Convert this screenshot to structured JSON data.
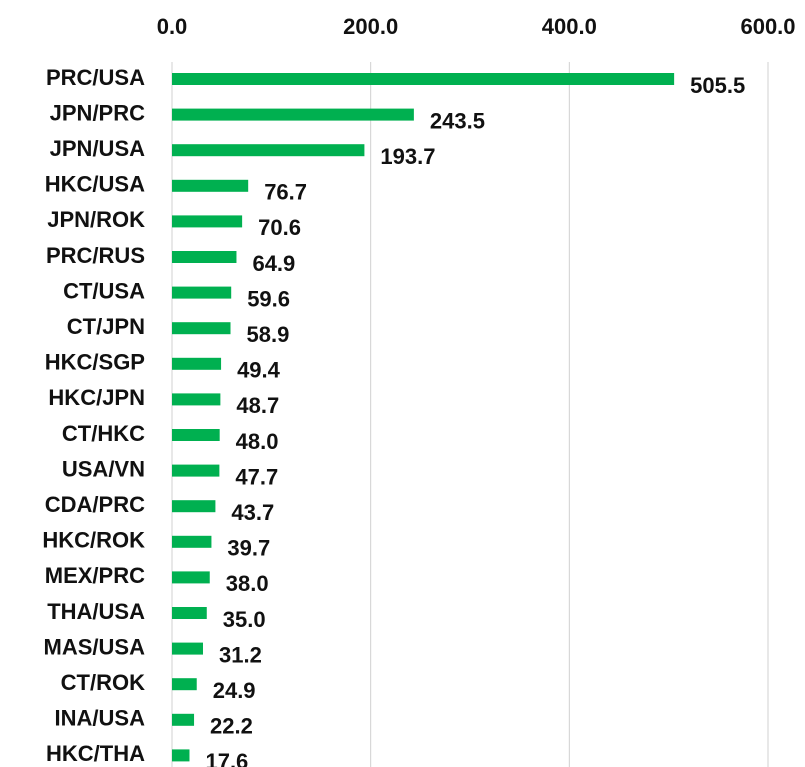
{
  "chart_data": {
    "type": "bar",
    "orientation": "horizontal",
    "categories": [
      "PRC/USA",
      "JPN/PRC",
      "JPN/USA",
      "HKC/USA",
      "JPN/ROK",
      "PRC/RUS",
      "CT/USA",
      "CT/JPN",
      "HKC/SGP",
      "HKC/JPN",
      "CT/HKC",
      "USA/VN",
      "CDA/PRC",
      "HKC/ROK",
      "MEX/PRC",
      "THA/USA",
      "MAS/USA",
      "CT/ROK",
      "INA/USA",
      "HKC/THA"
    ],
    "values": [
      505.5,
      243.5,
      193.7,
      76.7,
      70.6,
      64.9,
      59.6,
      58.9,
      49.4,
      48.7,
      48.0,
      47.7,
      43.7,
      39.7,
      38.0,
      35.0,
      31.2,
      24.9,
      22.2,
      17.6
    ],
    "value_labels": [
      "505.5",
      "243.5",
      "193.7",
      "76.7",
      "70.6",
      "64.9",
      "59.6",
      "58.9",
      "49.4",
      "48.7",
      "48.0",
      "47.7",
      "43.7",
      "39.7",
      "38.0",
      "35.0",
      "31.2",
      "24.9",
      "22.2",
      "17.6"
    ],
    "color": "#00b050",
    "xlim": [
      0,
      600
    ],
    "xticks": [
      {
        "value": 0,
        "label": "0.0"
      },
      {
        "value": 200,
        "label": "200.0"
      },
      {
        "value": 400,
        "label": "400.0"
      },
      {
        "value": 600,
        "label": "600.0"
      }
    ],
    "grid": true
  }
}
